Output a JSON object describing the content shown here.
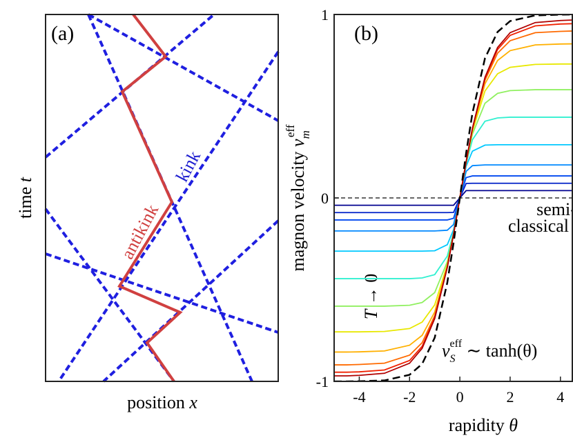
{
  "panel_a": {
    "label": "(a)",
    "ylabel": [
      "time ",
      "t"
    ],
    "xlabel": [
      "position ",
      "x"
    ],
    "kink": "kink",
    "antikink": "antikink"
  },
  "chart_data": {
    "type": "line",
    "panel_label": "(b)",
    "xlabel": [
      "rapidity ",
      "θ"
    ],
    "ylabel": [
      "magnon velocity ",
      "v",
      "m",
      "eff"
    ],
    "annotations": {
      "semi": "semi-",
      "classical": "classical",
      "t_limit": [
        "T",
        " → 0"
      ],
      "vs": [
        "v",
        "S",
        "eff",
        " ∼ tanh(θ)"
      ]
    },
    "x": [
      -5,
      -4.5,
      -4,
      -3,
      -2,
      -1.5,
      -1,
      -0.5,
      -0.25,
      0,
      0.25,
      0.5,
      1,
      1.5,
      2,
      3,
      4,
      4.5
    ],
    "xlim": [
      -5,
      4.5
    ],
    "ylim": [
      -1,
      1
    ],
    "xticks": [
      -4,
      -2,
      0,
      2,
      4
    ],
    "yticks": [
      -1,
      0,
      1
    ],
    "series": [
      {
        "color": "#00008f",
        "values": [
          -0.04,
          -0.04,
          -0.04,
          -0.04,
          -0.04,
          -0.04,
          -0.04,
          -0.04,
          -0.04,
          0,
          0.04,
          0.04,
          0.04,
          0.04,
          0.04,
          0.04,
          0.04,
          0.04
        ]
      },
      {
        "color": "#0020c8",
        "values": [
          -0.08,
          -0.08,
          -0.08,
          -0.08,
          -0.08,
          -0.08,
          -0.08,
          -0.08,
          -0.079,
          0,
          0.079,
          0.08,
          0.08,
          0.08,
          0.08,
          0.08,
          0.08,
          0.08
        ]
      },
      {
        "color": "#0048f0",
        "values": [
          -0.12,
          -0.12,
          -0.12,
          -0.12,
          -0.12,
          -0.12,
          -0.12,
          -0.12,
          -0.111,
          0,
          0.111,
          0.12,
          0.12,
          0.12,
          0.12,
          0.12,
          0.12,
          0.12
        ]
      },
      {
        "color": "#0088ff",
        "values": [
          -0.18,
          -0.18,
          -0.18,
          -0.18,
          -0.18,
          -0.18,
          -0.18,
          -0.176,
          -0.145,
          0,
          0.145,
          0.176,
          0.18,
          0.18,
          0.18,
          0.18,
          0.18,
          0.18
        ]
      },
      {
        "color": "#00c8ff",
        "values": [
          -0.29,
          -0.29,
          -0.29,
          -0.29,
          -0.29,
          -0.29,
          -0.288,
          -0.255,
          -0.173,
          0,
          0.173,
          0.255,
          0.288,
          0.29,
          0.29,
          0.29,
          0.29,
          0.29
        ]
      },
      {
        "color": "#30f0d0",
        "values": [
          -0.44,
          -0.44,
          -0.44,
          -0.44,
          -0.44,
          -0.436,
          -0.418,
          -0.317,
          -0.187,
          0,
          0.187,
          0.317,
          0.418,
          0.436,
          0.44,
          0.44,
          0.44,
          0.44
        ]
      },
      {
        "color": "#90f060",
        "values": [
          -0.59,
          -0.59,
          -0.59,
          -0.59,
          -0.585,
          -0.57,
          -0.516,
          -0.348,
          -0.193,
          0,
          0.193,
          0.348,
          0.516,
          0.57,
          0.585,
          0.59,
          0.59,
          0.59
        ]
      },
      {
        "color": "#e8e800",
        "values": [
          -0.73,
          -0.73,
          -0.73,
          -0.728,
          -0.712,
          -0.677,
          -0.583,
          -0.364,
          -0.195,
          0,
          0.195,
          0.364,
          0.583,
          0.677,
          0.712,
          0.728,
          0.73,
          0.73
        ]
      },
      {
        "color": "#ffb000",
        "values": [
          -0.84,
          -0.84,
          -0.839,
          -0.834,
          -0.803,
          -0.749,
          -0.622,
          -0.372,
          -0.196,
          0,
          0.196,
          0.372,
          0.622,
          0.749,
          0.803,
          0.834,
          0.839,
          0.84
        ]
      },
      {
        "color": "#ff6a00",
        "values": [
          -0.91,
          -0.91,
          -0.908,
          -0.901,
          -0.857,
          -0.789,
          -0.642,
          -0.376,
          -0.197,
          0,
          0.197,
          0.376,
          0.642,
          0.789,
          0.857,
          0.901,
          0.908,
          0.91
        ]
      },
      {
        "color": "#f02000",
        "values": [
          -0.95,
          -0.95,
          -0.948,
          -0.938,
          -0.886,
          -0.809,
          -0.652,
          -0.378,
          -0.198,
          0,
          0.198,
          0.378,
          0.652,
          0.809,
          0.886,
          0.938,
          0.948,
          0.95
        ]
      },
      {
        "color": "#b00000",
        "values": [
          -0.97,
          -0.97,
          -0.967,
          -0.956,
          -0.901,
          -0.82,
          -0.658,
          -0.379,
          -0.197,
          0,
          0.197,
          0.379,
          0.658,
          0.82,
          0.901,
          0.956,
          0.967,
          0.97
        ]
      },
      {
        "color": "#000000",
        "dash": true,
        "values": [
          -1,
          -1,
          -0.999,
          -0.995,
          -0.964,
          -0.905,
          -0.762,
          -0.462,
          -0.245,
          0,
          0.245,
          0.462,
          0.762,
          0.905,
          0.964,
          0.995,
          0.999,
          1
        ]
      }
    ]
  }
}
